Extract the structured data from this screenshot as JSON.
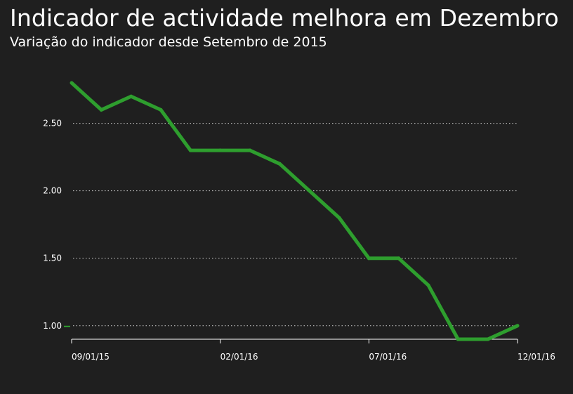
{
  "header": {
    "title": "Indicador de actividade melhora em Dezembro",
    "subtitle": "Variação do indicador desde Setembro de 2015"
  },
  "colors": {
    "background": "#1f1f1f",
    "line": "#2e9e2e",
    "grid": "#cfcfcf",
    "text": "#ffffff"
  },
  "chart_data": {
    "type": "line",
    "title": "Indicador de actividade melhora em Dezembro",
    "subtitle": "Variação do indicador desde Setembro de 2015",
    "xlabel": "",
    "ylabel": "",
    "x_ticks": [
      "09/01/15",
      "02/01/16",
      "07/01/16",
      "12/01/16"
    ],
    "y_ticks": [
      "1.00",
      "1.50",
      "2.00",
      "2.50"
    ],
    "ylim": [
      0.9,
      2.8
    ],
    "grid": true,
    "legend": "none",
    "series": [
      {
        "x": [
          "2015-09",
          "2015-10",
          "2015-11",
          "2015-12",
          "2016-01",
          "2016-02",
          "2016-03",
          "2016-04",
          "2016-05",
          "2016-06",
          "2016-07",
          "2016-08",
          "2016-09",
          "2016-10",
          "2016-11",
          "2016-12"
        ],
        "values": [
          2.8,
          2.6,
          2.7,
          2.6,
          2.3,
          2.3,
          2.3,
          2.2,
          2.0,
          1.8,
          1.5,
          1.5,
          1.3,
          0.9,
          0.9,
          1.0
        ]
      }
    ]
  }
}
